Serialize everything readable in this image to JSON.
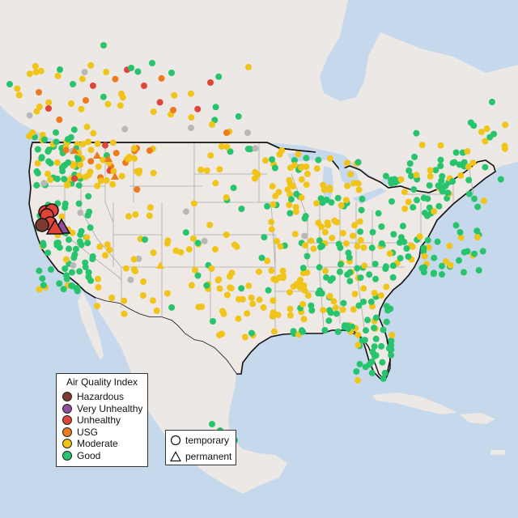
{
  "legend": {
    "title": "Air Quality Index",
    "categories": [
      {
        "key": "hazardous",
        "label": "Hazardous",
        "color": "#7e3a32"
      },
      {
        "key": "very_unhealthy",
        "label": "Very Unhealthy",
        "color": "#8e4f9c"
      },
      {
        "key": "unhealthy",
        "label": "Unhealthy",
        "color": "#e0453a"
      },
      {
        "key": "usg",
        "label": "USG",
        "color": "#ec7a1e"
      },
      {
        "key": "moderate",
        "label": "Moderate",
        "color": "#f0c419"
      },
      {
        "key": "good",
        "label": "Good",
        "color": "#27c46d"
      }
    ]
  },
  "shape_legend": {
    "items": [
      {
        "label": "temporary",
        "shape": "circle"
      },
      {
        "label": "permanent",
        "shape": "triangle"
      }
    ]
  },
  "colors": {
    "water": "#c6d8ec",
    "land": "#efe9e6",
    "land_foreign": "#ece8e5",
    "unknown_marker": "#b8b8b8",
    "state_border": "#a9a9a9",
    "national_border": "#111111"
  }
}
